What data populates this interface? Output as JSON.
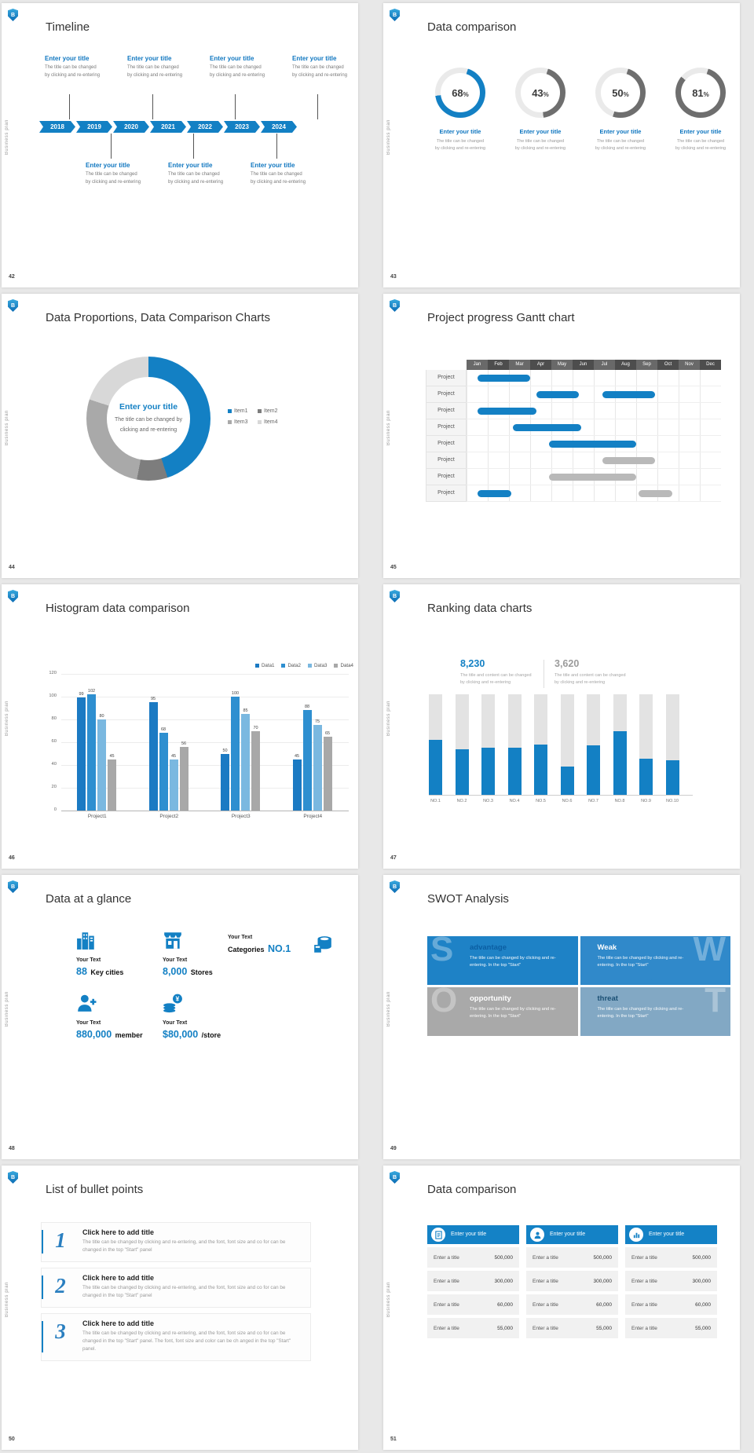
{
  "brand": {
    "logo_letter": "B",
    "sidebar_label": "Business plan",
    "blue": "#1380c4",
    "gray": "#b9b9b9"
  },
  "slides": [
    {
      "number": "42",
      "title": "Timeline",
      "timeline": {
        "item_title": "Enter your title",
        "item_desc_line1": "The title can be changed",
        "item_desc_line2": "by clicking and re-entering"
      }
    },
    {
      "number": "43",
      "title": "Data comparison",
      "item_title": "Enter your title",
      "item_desc_line1": "The title can be changed",
      "item_desc_line2": "by clicking and re-entering"
    },
    {
      "number": "44",
      "title": "Data Proportions, Data Comparison Charts",
      "donut_center": {
        "title": "Enter your title",
        "desc": "The title can be changed by clicking and re-entering"
      }
    },
    {
      "number": "45",
      "title": "Project progress Gantt chart"
    },
    {
      "number": "46",
      "title": "Histogram data comparison"
    },
    {
      "number": "47",
      "title": "Ranking data charts",
      "stats": [
        {
          "value": "8,230",
          "color": "#1380c4",
          "desc_line1": "The title and content can be changed",
          "desc_line2": "by clicking and re-entering"
        },
        {
          "value": "3,620",
          "color": "#9b9b9b",
          "desc_line1": "The title and content can be changed",
          "desc_line2": "by clicking and re-entering"
        }
      ]
    },
    {
      "number": "48",
      "title": "Data at a glance",
      "stats": [
        {
          "icon": "city-buildings",
          "label": "Your Text",
          "value": "88",
          "unit": "Key cities"
        },
        {
          "icon": "store",
          "label": "Your Text",
          "value": "8,000",
          "unit": "Stores"
        },
        {
          "icon": "categories-barrel",
          "label": "Your Text",
          "unit": "Categories",
          "value": "NO.1"
        },
        {
          "icon": "member-add",
          "label": "Your Text",
          "value": "880,000",
          "unit": "member"
        },
        {
          "icon": "coins",
          "label": "Your Text",
          "value": "$80,000",
          "unit": "/store"
        }
      ]
    },
    {
      "number": "49",
      "title": "SWOT Analysis",
      "swot": [
        {
          "letter": "S",
          "title": "advantage",
          "desc": "The title can be changed by clicking and re-entering. In the top \"Start\"",
          "bg": "#1e82c6",
          "title_color": "#0b5ea2"
        },
        {
          "letter": "W",
          "title": "Weak",
          "desc": "The title can be changed by clicking and re-entering. In the top \"Start\"",
          "bg": "#3089ca",
          "title_color": "#ffffff"
        },
        {
          "letter": "O",
          "title": "opportunity",
          "desc": "The title can be changed by clicking and re-entering. In the top \"Start\"",
          "bg": "#a9a9a9",
          "title_color": "#ffffff"
        },
        {
          "letter": "T",
          "title": "threat",
          "desc": "The title can be changed by clicking and re-entering. In the top \"Start\"",
          "bg": "#82a8c4",
          "title_color": "#1a4f74"
        }
      ]
    },
    {
      "number": "50",
      "title": "List of bullet points",
      "bullets": [
        {
          "num": "1",
          "title": "Click here to add title",
          "desc": "The title can be changed by clicking and re-entering, and the font, font size and co for can be changed in the top \"Start\" panel"
        },
        {
          "num": "2",
          "title": "Click here to add title",
          "desc": "The title can be changed by clicking and re-entering, and the font, font size and co for can be changed in the top \"Start\" panel"
        },
        {
          "num": "3",
          "title": "Click here to add title",
          "desc": "The title can be changed by clicking and re-entering, and the font, font size and co for can be changed in the top \"Start\" panel. The font, font size and color can be ch anged in the top \"Start\" panel."
        }
      ]
    },
    {
      "number": "51",
      "title": "Data comparison",
      "comparison": {
        "header": "Enter your title",
        "row_label": "Enter a title",
        "header_icons": [
          "document-icon",
          "person-icon",
          "chart-icon"
        ],
        "values": [
          "500,000",
          "300,000",
          "60,000",
          "55,000"
        ]
      }
    }
  ],
  "chart_data": [
    {
      "type": "pie",
      "variant": "progress-rings",
      "title": "Data comparison",
      "values": [
        68,
        43,
        50,
        81
      ],
      "unit": "%",
      "colors": [
        "#1380c4",
        "#6e6e6e",
        "#6e6e6e",
        "#6e6e6e"
      ],
      "track_color": "#eaeaea"
    },
    {
      "type": "pie",
      "variant": "donut",
      "title": "Data Proportions, Data Comparison Charts",
      "labels": [
        "Item1",
        "Item2",
        "Item3",
        "Item4"
      ],
      "values": [
        45,
        8,
        27,
        20
      ],
      "colors": [
        "#1380c4",
        "#7d7d7d",
        "#a9a9a9",
        "#d8d8d8"
      ]
    },
    {
      "type": "gantt",
      "title": "Project progress Gantt chart",
      "months": [
        "Jan",
        "Feb",
        "Mar",
        "Apr",
        "May",
        "Jun",
        "Jul",
        "Aug",
        "Sep",
        "Oct",
        "Nov",
        "Dec"
      ],
      "row_label": "Project",
      "rows": [
        {
          "bars": [
            {
              "start": 0.5,
              "end": 3.0,
              "color": "blue"
            }
          ]
        },
        {
          "bars": [
            {
              "start": 3.3,
              "end": 5.3,
              "color": "blue"
            },
            {
              "start": 6.4,
              "end": 8.9,
              "color": "blue"
            }
          ]
        },
        {
          "bars": [
            {
              "start": 0.5,
              "end": 3.3,
              "color": "blue"
            }
          ]
        },
        {
          "bars": [
            {
              "start": 2.2,
              "end": 5.4,
              "color": "blue"
            }
          ]
        },
        {
          "bars": [
            {
              "start": 3.9,
              "end": 8.0,
              "color": "blue"
            }
          ]
        },
        {
          "bars": [
            {
              "start": 6.4,
              "end": 8.9,
              "color": "gray"
            }
          ]
        },
        {
          "bars": [
            {
              "start": 3.9,
              "end": 8.0,
              "color": "gray"
            }
          ]
        },
        {
          "bars": [
            {
              "start": 0.5,
              "end": 2.1,
              "color": "blue"
            },
            {
              "start": 8.1,
              "end": 9.7,
              "color": "gray"
            }
          ]
        }
      ]
    },
    {
      "type": "bar",
      "title": "Histogram data comparison",
      "categories": [
        "Project1",
        "Project2",
        "Project3",
        "Project4"
      ],
      "series": [
        {
          "name": "Data1",
          "color": "#1b7ac3",
          "values": [
            99,
            95,
            50,
            45
          ]
        },
        {
          "name": "Data2",
          "color": "#2e8fd0",
          "values": [
            102,
            68,
            100,
            88
          ]
        },
        {
          "name": "Data3",
          "color": "#7ab8e0",
          "values": [
            80,
            45,
            85,
            75
          ]
        },
        {
          "name": "Data4",
          "color": "#a8a8a8",
          "values": [
            45,
            56,
            70,
            65
          ]
        }
      ],
      "y_ticks": [
        0,
        20,
        40,
        60,
        80,
        100,
        120
      ],
      "ylim": [
        0,
        120
      ],
      "grid": true,
      "legend_position": "top-right"
    },
    {
      "type": "bar",
      "title": "Ranking data charts",
      "categories": [
        "NO.1",
        "NO.2",
        "NO.3",
        "NO.4",
        "NO.5",
        "NO.6",
        "NO.7",
        "NO.8",
        "NO.9",
        "NO.10"
      ],
      "values": [
        55,
        45,
        47,
        47,
        50,
        28,
        49,
        63,
        36,
        34
      ],
      "track_max": 100,
      "bar_color": "#1380c4",
      "track_color": "#e3e3e3",
      "highlight_values": [
        "8,230",
        "3,620"
      ]
    }
  ]
}
